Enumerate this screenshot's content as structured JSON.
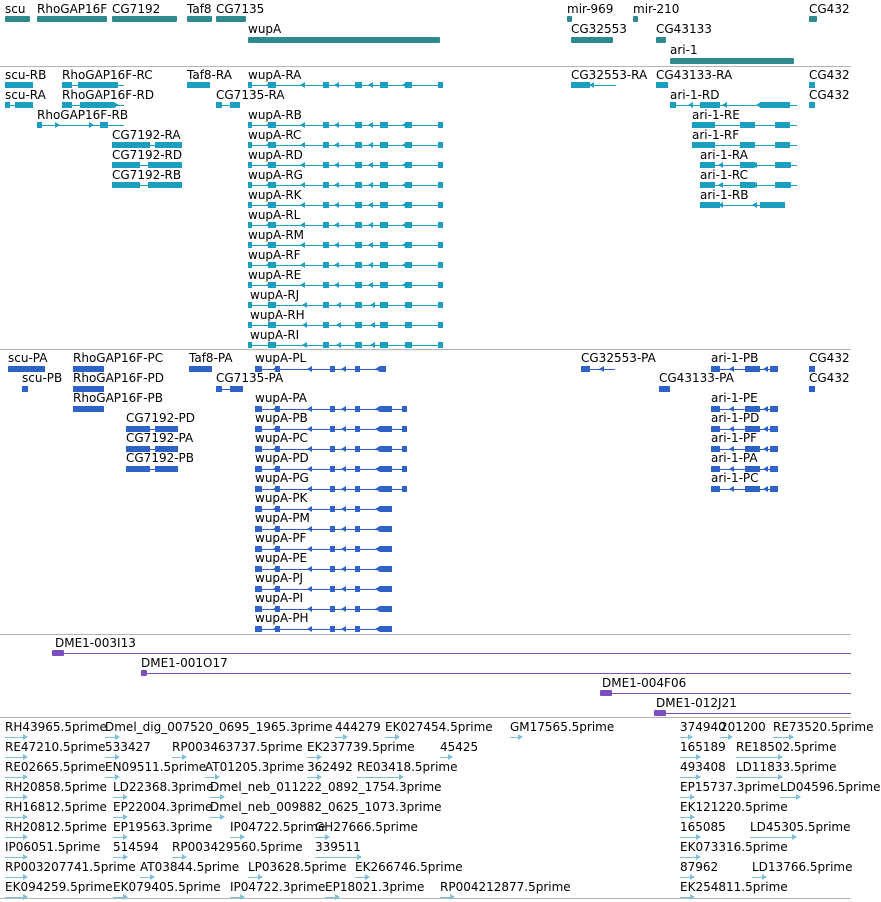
{
  "colors": {
    "gene": "#2f8a8f",
    "transcript": "#1a9fc0",
    "protein": "#2f62c8",
    "clone": "#7a4fc0",
    "est": "#7ec0dc",
    "separator": "#b4b4b4"
  },
  "gene_track": {
    "labels": [
      "scu",
      "RhoGAP16F",
      "CG7192",
      "Taf8",
      "CG7135",
      "wupA",
      "mir-969",
      "mir-210",
      "CG32553",
      "CG43133",
      "ari-1",
      "CG432"
    ]
  },
  "transcript_track": {
    "labels": [
      "scu-RB",
      "scu-RA",
      "RhoGAP16F-RC",
      "RhoGAP16F-RD",
      "RhoGAP16F-RB",
      "CG7192-RA",
      "CG7192-RD",
      "CG7192-RB",
      "Taf8-RA",
      "CG7135-RA",
      "wupA-RA",
      "wupA-RB",
      "wupA-RC",
      "wupA-RD",
      "wupA-RG",
      "wupA-RK",
      "wupA-RL",
      "wupA-RM",
      "wupA-RF",
      "wupA-RE",
      "wupA-RJ",
      "wupA-RH",
      "wupA-RI",
      "CG32553-RA",
      "CG43133-RA",
      "ari-1-RD",
      "ari-1-RE",
      "ari-1-RF",
      "ari-1-RA",
      "ari-1-RC",
      "ari-1-RB",
      "CG432",
      "CG432"
    ]
  },
  "protein_track": {
    "labels": [
      "scu-PA",
      "scu-PB",
      "RhoGAP16F-PC",
      "RhoGAP16F-PD",
      "RhoGAP16F-PB",
      "CG7192-PD",
      "CG7192-PA",
      "CG7192-PB",
      "Taf8-PA",
      "CG7135-PA",
      "wupA-PL",
      "wupA-PA",
      "wupA-PB",
      "wupA-PC",
      "wupA-PD",
      "wupA-PG",
      "wupA-PK",
      "wupA-PM",
      "wupA-PF",
      "wupA-PE",
      "wupA-PJ",
      "wupA-PI",
      "wupA-PH",
      "CG32553-PA",
      "CG43133-PA",
      "ari-1-PB",
      "ari-1-PE",
      "ari-1-PD",
      "ari-1-PF",
      "ari-1-PA",
      "ari-1-PC",
      "CG432",
      "CG432"
    ]
  },
  "clone_track": {
    "labels": [
      "DME1-003I13",
      "DME1-001O17",
      "DME1-004F06",
      "DME1-012J21"
    ]
  },
  "est_track": {
    "labels": [
      "RH43965.5prime",
      "Dmel_dig_007520_0695_1965.3prime",
      "444279",
      "EK027454.5prime",
      "GM17565.5prime",
      "374940",
      "201200",
      "RE73520.5prime",
      "RE47210.5prime",
      "533427",
      "RP003463737.5prime",
      "EK237739.5prime",
      "45425",
      "165189",
      "RE18502.5prime",
      "RE02665.5prime",
      "EN09511.5prime",
      "AT01205.3prime",
      "362492",
      "RE03418.5prime",
      "493408",
      "LD11833.5prime",
      "RH20858.5prime",
      "LD22368.3prime",
      "Dmel_neb_011222_0892_1754.3prime",
      "EP15737.3prime",
      "LD04596.5prime",
      "RH16812.5prime",
      "EP22004.3prime",
      "Dmel_neb_009882_0625_1073.3prime",
      "EK121220.5prime",
      "RH20812.5prime",
      "EP19563.3prime",
      "IP04722.5prime",
      "GH27666.5prime",
      "165085",
      "LD45305.5prime",
      "IP06051.5prime",
      "514594",
      "RP003429560.5prime",
      "339511",
      "EK073316.5prime",
      "RP003207741.5prime",
      "AT03844.5prime",
      "LP03628.5prime",
      "EK266746.5prime",
      "87962",
      "LD13766.5prime",
      "EK094259.5prime",
      "EK079405.5prime",
      "IP04722.3prime",
      "EP18021.3prime",
      "RP004212877.5prime",
      "EK254811.5prime"
    ]
  }
}
